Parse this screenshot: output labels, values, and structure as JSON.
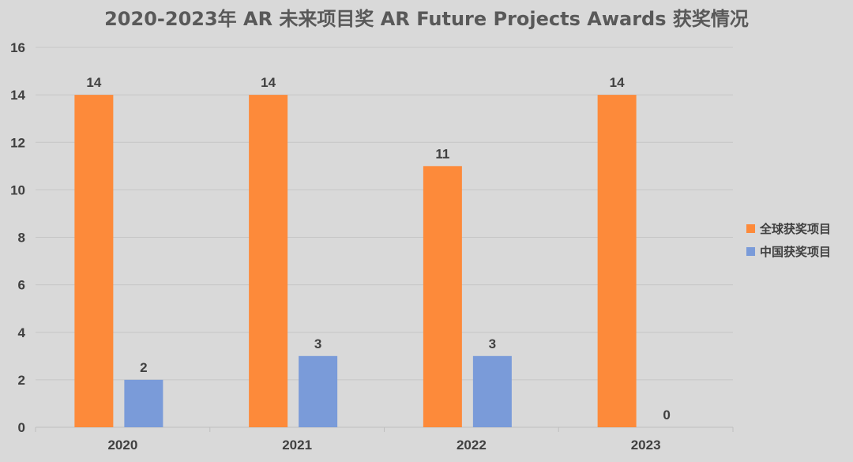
{
  "chart_data": {
    "type": "bar",
    "title": "2020-2023年 AR 未来项目奖 AR Future Projects Awards 获奖情况",
    "xlabel": "",
    "ylabel": "",
    "categories": [
      "2020",
      "2021",
      "2022",
      "2023"
    ],
    "series": [
      {
        "name": "全球获奖项目",
        "values": [
          14,
          14,
          11,
          14
        ],
        "color": "#fd8a3a"
      },
      {
        "name": "中国获奖项目",
        "values": [
          2,
          3,
          3,
          0
        ],
        "color": "#7a9bd9"
      }
    ],
    "ylim": [
      0,
      16
    ],
    "yticks": [
      0,
      2,
      4,
      6,
      8,
      10,
      12,
      14,
      16
    ],
    "grid": true,
    "legend_position": "right"
  }
}
